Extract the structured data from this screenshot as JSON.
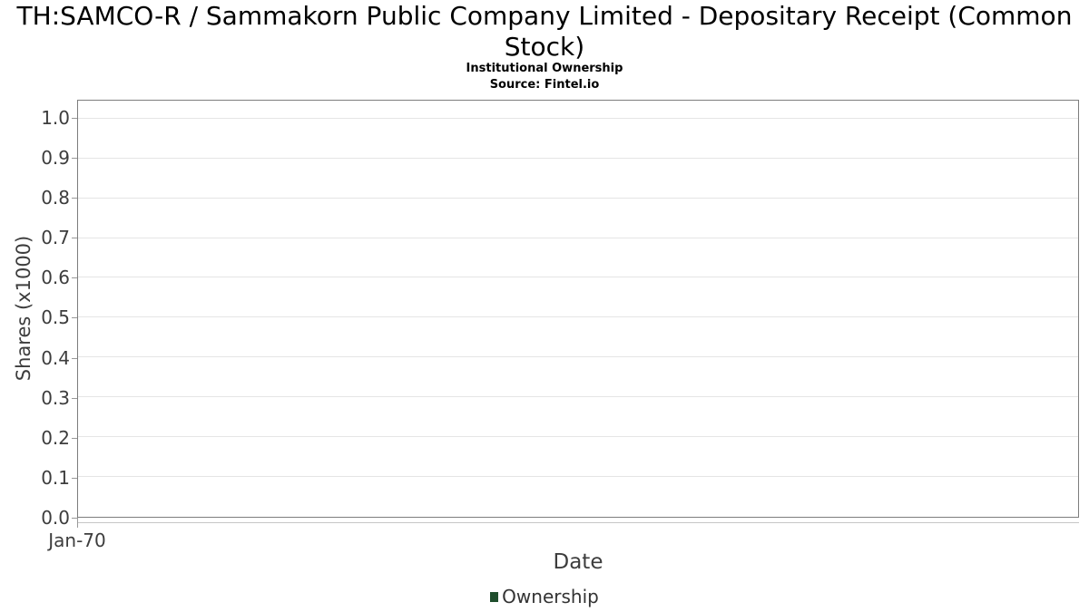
{
  "header": {
    "title": "TH:SAMCO-R / Sammakorn Public Company Limited - Depositary Receipt (Common Stock)",
    "subtitle": "Institutional Ownership",
    "source": "Source: Fintel.io"
  },
  "chart_data": {
    "type": "line",
    "title": "TH:SAMCO-R / Sammakorn Public Company Limited - Depositary Receipt (Common Stock)",
    "subtitle": "Institutional Ownership",
    "source": "Source: Fintel.io",
    "xlabel": "Date",
    "ylabel": "Shares (x1000)",
    "x_tick_labels": [
      "Jan-70"
    ],
    "y_ticks": [
      0.0,
      0.1,
      0.2,
      0.3,
      0.4,
      0.5,
      0.6,
      0.7,
      0.8,
      0.9,
      1.0
    ],
    "ylim": [
      0,
      1.045
    ],
    "grid": true,
    "legend": {
      "position": "bottom",
      "items": [
        {
          "label": "Ownership",
          "color": "#1f4e2d"
        }
      ]
    },
    "series": [
      {
        "name": "Ownership",
        "color": "#1f4e2d",
        "x": [],
        "values": []
      }
    ]
  },
  "colors": {
    "background": "#ffffff",
    "title_text": "#000000",
    "axis_text": "#3d3d3d",
    "grid_line": "#e5e5e5",
    "plot_border": "#7d7d7d",
    "x_axis_line": "#c6c6c6",
    "tick_mark": "#999999",
    "series_green": "#1f4e2d"
  }
}
